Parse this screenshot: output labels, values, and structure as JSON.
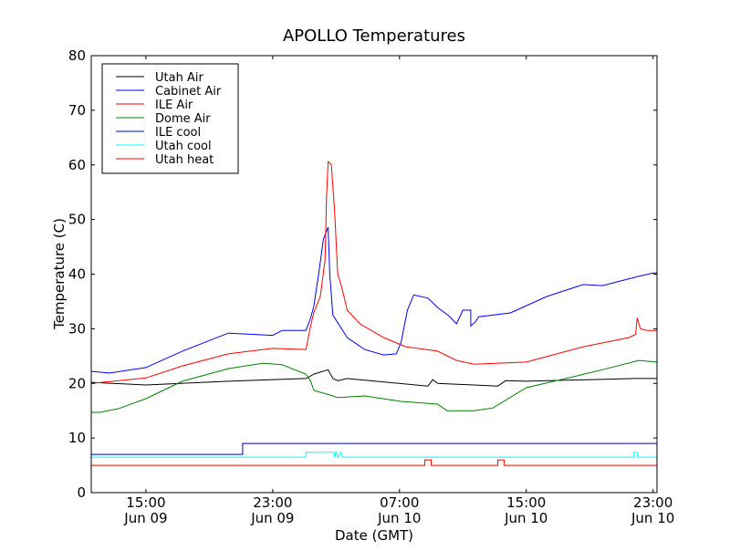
{
  "chart_data": {
    "type": "line",
    "title": "APOLLO Temperatures",
    "xlabel": "Date (GMT)",
    "ylabel": "Temperature (C)",
    "x_unit": "hours since Jun 09 00:00 GMT",
    "xlim": [
      11.55,
      47.25
    ],
    "ylim": [
      0,
      80
    ],
    "yticks": [
      0,
      10,
      20,
      30,
      40,
      50,
      60,
      70,
      80
    ],
    "xticks": [
      {
        "value": 15,
        "time": "15:00",
        "date": "Jun 09"
      },
      {
        "value": 23,
        "time": "23:00",
        "date": "Jun 09"
      },
      {
        "value": 31,
        "time": "07:00",
        "date": "Jun 10"
      },
      {
        "value": 39,
        "time": "15:00",
        "date": "Jun 10"
      },
      {
        "value": 47,
        "time": "23:00",
        "date": "Jun 10"
      }
    ],
    "grid": false,
    "legend_position": "top-left",
    "series": [
      {
        "name": "Utah Air",
        "color": "#000000",
        "points": [
          [
            11.55,
            20.2
          ],
          [
            15,
            19.7
          ],
          [
            20.2,
            20.4
          ],
          [
            25.1,
            20.9
          ],
          [
            25.6,
            21.7
          ],
          [
            26.5,
            22.5
          ],
          [
            26.8,
            20.9
          ],
          [
            27.1,
            20.5
          ],
          [
            27.7,
            20.9
          ],
          [
            32.8,
            19.5
          ],
          [
            33.1,
            20.7
          ],
          [
            33.4,
            20
          ],
          [
            37.2,
            19.5
          ],
          [
            37.7,
            20.5
          ],
          [
            39,
            20.4
          ],
          [
            45.9,
            20.9
          ],
          [
            47.25,
            20.9
          ]
        ]
      },
      {
        "name": "Cabinet Air",
        "color": "#0000ff",
        "points": [
          [
            11.55,
            22.2
          ],
          [
            12.7,
            21.9
          ],
          [
            15,
            22.9
          ],
          [
            17.3,
            25.9
          ],
          [
            20.2,
            29.2
          ],
          [
            23,
            28.8
          ],
          [
            23.6,
            29.7
          ],
          [
            25.1,
            29.7
          ],
          [
            25.4,
            32
          ],
          [
            25.6,
            34.2
          ],
          [
            25.9,
            40
          ],
          [
            26.2,
            46.4
          ],
          [
            26.5,
            48.6
          ],
          [
            26.6,
            40
          ],
          [
            26.8,
            32.5
          ],
          [
            27.7,
            28.4
          ],
          [
            28.8,
            26.2
          ],
          [
            30,
            25.2
          ],
          [
            30.8,
            25.4
          ],
          [
            31.1,
            27.5
          ],
          [
            31.5,
            33.4
          ],
          [
            31.9,
            36.2
          ],
          [
            32.8,
            35.6
          ],
          [
            33.4,
            33.9
          ],
          [
            34.1,
            32.4
          ],
          [
            34.6,
            30.9
          ],
          [
            35,
            33.4
          ],
          [
            35.5,
            33.4
          ],
          [
            35.5,
            30.5
          ],
          [
            35.8,
            31.3
          ],
          [
            36,
            32.2
          ],
          [
            38,
            32.9
          ],
          [
            40.3,
            35.9
          ],
          [
            42.6,
            38.1
          ],
          [
            43.8,
            37.9
          ],
          [
            46.1,
            39.6
          ],
          [
            47,
            40.2
          ],
          [
            47.25,
            40.2
          ]
        ]
      },
      {
        "name": "ILE Air",
        "color": "#ff0000",
        "points": [
          [
            11.55,
            20
          ],
          [
            15,
            21
          ],
          [
            17.3,
            23.2
          ],
          [
            20.2,
            25.4
          ],
          [
            23,
            26.4
          ],
          [
            25.1,
            26.2
          ],
          [
            25.4,
            30.6
          ],
          [
            25.6,
            33
          ],
          [
            26,
            35.9
          ],
          [
            26.3,
            42.6
          ],
          [
            26.4,
            54.3
          ],
          [
            26.5,
            60.6
          ],
          [
            26.7,
            60.1
          ],
          [
            26.9,
            51.8
          ],
          [
            27.1,
            40.1
          ],
          [
            27.4,
            37.1
          ],
          [
            27.7,
            33.4
          ],
          [
            28.5,
            30.9
          ],
          [
            30,
            28.4
          ],
          [
            31.4,
            26.7
          ],
          [
            33.4,
            25.9
          ],
          [
            34.6,
            24.2
          ],
          [
            35.7,
            23.5
          ],
          [
            39,
            23.9
          ],
          [
            42.6,
            26.7
          ],
          [
            45.5,
            28.4
          ],
          [
            45.9,
            29
          ],
          [
            46,
            32
          ],
          [
            46.2,
            30
          ],
          [
            46.6,
            29.7
          ],
          [
            47.25,
            29.7
          ]
        ]
      },
      {
        "name": "Dome Air",
        "color": "#008000",
        "points": [
          [
            11.55,
            14.7
          ],
          [
            12.1,
            14.7
          ],
          [
            13.3,
            15.4
          ],
          [
            15,
            17.2
          ],
          [
            17.3,
            20.4
          ],
          [
            20.2,
            22.7
          ],
          [
            22.4,
            23.7
          ],
          [
            23.6,
            23.4
          ],
          [
            25.1,
            21.7
          ],
          [
            25.4,
            20.4
          ],
          [
            25.6,
            18.7
          ],
          [
            26.8,
            17.7
          ],
          [
            27.1,
            17.4
          ],
          [
            28.8,
            17.7
          ],
          [
            31.1,
            16.7
          ],
          [
            33.4,
            16.2
          ],
          [
            34,
            15
          ],
          [
            35.7,
            15
          ],
          [
            36.9,
            15.5
          ],
          [
            39,
            19.2
          ],
          [
            41.5,
            20.9
          ],
          [
            43.8,
            22.5
          ],
          [
            46.1,
            24.2
          ],
          [
            47.25,
            23.9
          ]
        ]
      },
      {
        "name": "ILE cool",
        "color": "#0000bf",
        "points": [
          [
            11.55,
            7
          ],
          [
            21.1,
            7
          ],
          [
            21.1,
            9
          ],
          [
            47.25,
            9
          ]
        ]
      },
      {
        "name": "Utah cool",
        "color": "#00ffff",
        "points": [
          [
            11.55,
            6.5
          ],
          [
            25.1,
            6.5
          ],
          [
            25.1,
            7.4
          ],
          [
            26.9,
            7.4
          ],
          [
            26.9,
            6.5
          ],
          [
            27.0,
            7.4
          ],
          [
            27.1,
            6.5
          ],
          [
            27.3,
            7.4
          ],
          [
            27.4,
            6.5
          ],
          [
            45.8,
            6.5
          ],
          [
            45.8,
            7.4
          ],
          [
            46,
            7.4
          ],
          [
            46,
            6.5
          ],
          [
            47.25,
            6.5
          ]
        ]
      },
      {
        "name": "Utah heat",
        "color": "#ff0000",
        "points": [
          [
            11.55,
            5
          ],
          [
            32.6,
            5
          ],
          [
            32.6,
            6
          ],
          [
            33.0,
            6
          ],
          [
            33.0,
            5
          ],
          [
            37.2,
            5
          ],
          [
            37.2,
            6
          ],
          [
            37.6,
            6
          ],
          [
            37.6,
            5
          ],
          [
            47.25,
            5
          ]
        ]
      }
    ]
  }
}
